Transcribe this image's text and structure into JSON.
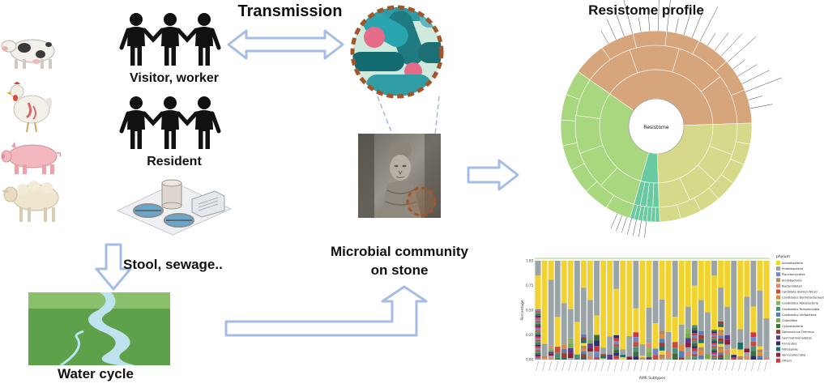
{
  "labels": {
    "transmission": "Transmission",
    "visitor_worker": "Visitor, worker",
    "resident": "Resident",
    "stool_sewage": "Stool, sewage..",
    "water_cycle": "Water cycle",
    "microbial_line1": "Microbial community",
    "microbial_line2": "on stone",
    "resistome_profile": "Resistome profile"
  },
  "sunburst": {
    "center_label": "Resistome",
    "colors": {
      "brown": "#d6a57c",
      "green": "#a9d77f",
      "olive": "#d7d98a",
      "teal": "#69c9a0"
    }
  },
  "stacked_bar": {
    "x_title": "AMR Subtypes",
    "y_title": "Percentage",
    "y_ticks": [
      "0.00",
      "0.25",
      "0.50",
      "0.75",
      "1.00"
    ],
    "legend_title": "phylum",
    "legend_items": [
      {
        "name": "Actinobacteria",
        "color": "#f2d22e"
      },
      {
        "name": "Proteobacteria",
        "color": "#9aa3a6"
      },
      {
        "name": "Planctomycetes",
        "color": "#6f86c9"
      },
      {
        "name": "Acidobacteria",
        "color": "#b58a5e"
      },
      {
        "name": "Bacteroidetes",
        "color": "#d98a6e"
      },
      {
        "name": "candidate division NC10",
        "color": "#c74c3c"
      },
      {
        "name": "Candidatus Dormibacteraeota",
        "color": "#e08a3c"
      },
      {
        "name": "Candidatus Rokubacteria",
        "color": "#8ab06a"
      },
      {
        "name": "Candidatus Tectomicrobia",
        "color": "#4e8d7c"
      },
      {
        "name": "Candidatus Uhrbacteria",
        "color": "#5a7fb8"
      },
      {
        "name": "Chloroflexi",
        "color": "#7aa84f"
      },
      {
        "name": "Cyanobacteria",
        "color": "#3f6d3a"
      },
      {
        "name": "Deinococcus-Thermus",
        "color": "#a33b2c"
      },
      {
        "name": "Gemmatimonadetes",
        "color": "#5b3b8c"
      },
      {
        "name": "Firmicutes",
        "color": "#2b2f6b"
      },
      {
        "name": "Nitrospirae",
        "color": "#1f6e6e"
      },
      {
        "name": "Verrucomicrobia",
        "color": "#8c1f3a"
      },
      {
        "name": "Others",
        "color": "#d8333a"
      }
    ]
  }
}
